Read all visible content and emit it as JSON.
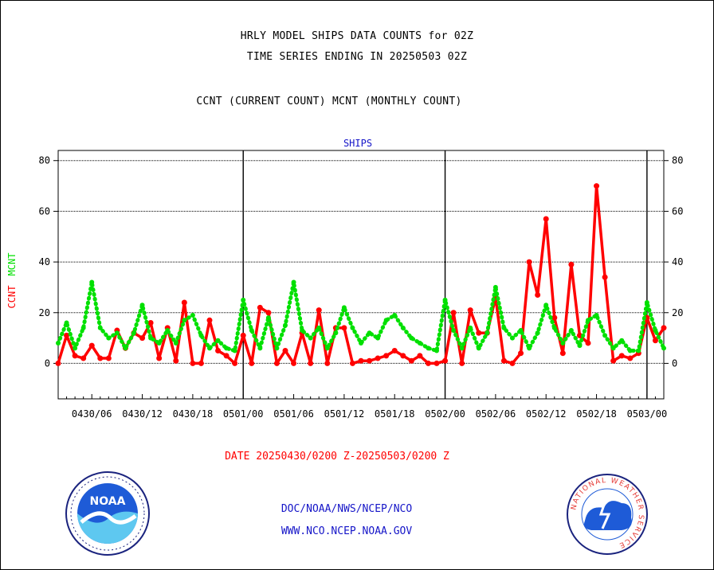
{
  "header": {
    "line1": "HRLY MODEL SHIPS DATA COUNTS for 02Z",
    "line2": "TIME SERIES ENDING IN 20250503 02Z",
    "line3": "CCNT (CURRENT COUNT) MCNT (MONTHLY COUNT)"
  },
  "footer": {
    "date_range": "DATE 20250430/0200 Z-20250503/0200 Z",
    "org_path": "DOC/NOAA/NWS/NCEP/NCO",
    "website": "WWW.NCO.NCEP.NOAA.GOV"
  },
  "logos": {
    "noaa_text": "NOAA",
    "nws_text": "NATIONAL WEATHER SERVICE"
  },
  "colors": {
    "ccnt": "#ff0000",
    "mcnt": "#00e000",
    "axis_title": "#1515c8"
  },
  "chart_data": {
    "type": "line",
    "title": "SHIPS",
    "ylabel_left": [
      "CCNT",
      "MCNT"
    ],
    "ylim": [
      -14,
      84
    ],
    "yticks": [
      0,
      20,
      40,
      60,
      80
    ],
    "xticks": [
      {
        "hour": 4,
        "label": "0430/06"
      },
      {
        "hour": 10,
        "label": "0430/12"
      },
      {
        "hour": 16,
        "label": "0430/18"
      },
      {
        "hour": 22,
        "label": "0501/00"
      },
      {
        "hour": 28,
        "label": "0501/06"
      },
      {
        "hour": 34,
        "label": "0501/12"
      },
      {
        "hour": 40,
        "label": "0501/18"
      },
      {
        "hour": 46,
        "label": "0502/00"
      },
      {
        "hour": 52,
        "label": "0502/06"
      },
      {
        "hour": 58,
        "label": "0502/12"
      },
      {
        "hour": 64,
        "label": "0502/18"
      },
      {
        "hour": 70,
        "label": "0503/00"
      }
    ],
    "day_boundaries": [
      22,
      46,
      70
    ],
    "x_range_hours": [
      0,
      72
    ],
    "grid": true,
    "series": [
      {
        "name": "CCNT",
        "style": "solid",
        "values": [
          0,
          11,
          3,
          2,
          7,
          2,
          2,
          13,
          6,
          12,
          10,
          16,
          2,
          14,
          1,
          24,
          0,
          0,
          17,
          5,
          3,
          0,
          11,
          0,
          22,
          20,
          0,
          5,
          0,
          12,
          0,
          21,
          0,
          14,
          14,
          0,
          1,
          1,
          2,
          3,
          5,
          3,
          1,
          3,
          0,
          0,
          1,
          20,
          0,
          21,
          12,
          12,
          26,
          1,
          0,
          4,
          40,
          27,
          57,
          18,
          4,
          39,
          11,
          8,
          70,
          34,
          1,
          3,
          2,
          4,
          18,
          9,
          14
        ]
      },
      {
        "name": "MCNT",
        "style": "dotted",
        "values": [
          8,
          16,
          6,
          14,
          32,
          14,
          10,
          12,
          6,
          12,
          23,
          10,
          8,
          13,
          8,
          17,
          19,
          11,
          6,
          9,
          6,
          5,
          25,
          13,
          6,
          18,
          6,
          15,
          32,
          13,
          10,
          14,
          6,
          12,
          22,
          14,
          8,
          12,
          10,
          17,
          19,
          14,
          10,
          8,
          6,
          5,
          25,
          13,
          6,
          14,
          6,
          12,
          30,
          14,
          10,
          13,
          6,
          12,
          23,
          14,
          8,
          13,
          7,
          17,
          19,
          11,
          6,
          9,
          5,
          5,
          24,
          13,
          6
        ]
      }
    ]
  }
}
